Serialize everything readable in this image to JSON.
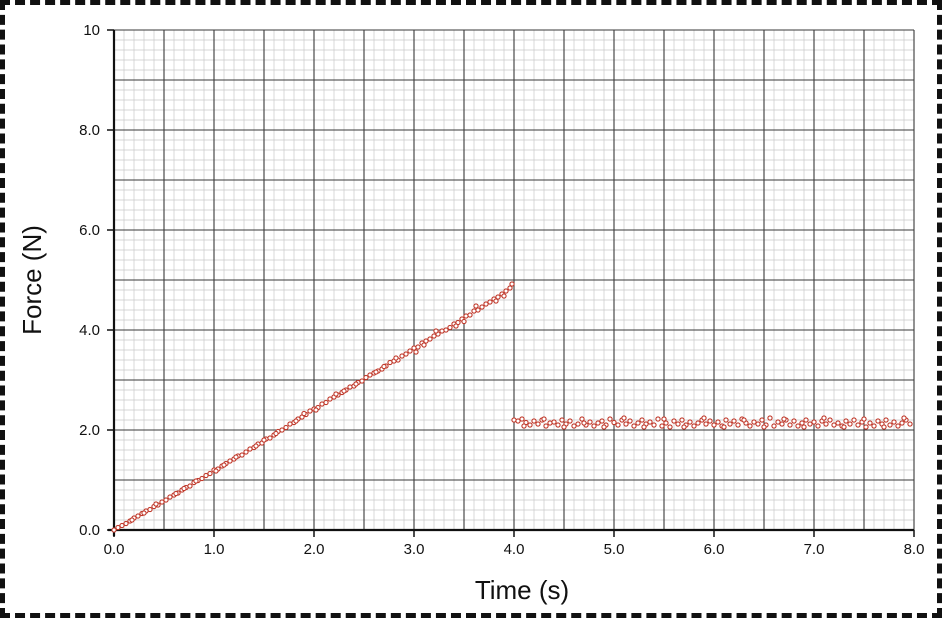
{
  "chart_data": {
    "type": "scatter",
    "title": "",
    "xlabel": "Time (s)",
    "ylabel": "Force (N)",
    "xlim": [
      0,
      8
    ],
    "ylim": [
      0,
      10
    ],
    "x_ticks": [
      "0.0",
      "1.0",
      "2.0",
      "3.0",
      "4.0",
      "5.0",
      "6.0",
      "7.0",
      "8.0"
    ],
    "y_ticks": [
      "0.0",
      "2.0",
      "4.0",
      "6.0",
      "8.0",
      "10"
    ],
    "grid": true,
    "colors": {
      "marker": "#c0392b",
      "major_grid": "#3a3a3a",
      "minor_grid": "#c8c8c8",
      "axis": "#111111"
    },
    "series": [
      {
        "segments": [
          {
            "description_time_range": [
              0.0,
              4.0
            ],
            "points": [
              [
                0.0,
                0.0
              ],
              [
                0.04,
                0.05
              ],
              [
                0.08,
                0.09
              ],
              [
                0.12,
                0.13
              ],
              [
                0.16,
                0.18
              ],
              [
                0.2,
                0.24
              ],
              [
                0.24,
                0.28
              ],
              [
                0.28,
                0.33
              ],
              [
                0.32,
                0.38
              ],
              [
                0.36,
                0.41
              ],
              [
                0.4,
                0.47
              ],
              [
                0.44,
                0.5
              ],
              [
                0.48,
                0.56
              ],
              [
                0.52,
                0.6
              ],
              [
                0.56,
                0.66
              ],
              [
                0.6,
                0.7
              ],
              [
                0.64,
                0.74
              ],
              [
                0.68,
                0.8
              ],
              [
                0.72,
                0.85
              ],
              [
                0.76,
                0.88
              ],
              [
                0.8,
                0.95
              ],
              [
                0.84,
                0.99
              ],
              [
                0.88,
                1.03
              ],
              [
                0.92,
                1.09
              ],
              [
                0.96,
                1.13
              ],
              [
                1.0,
                1.2
              ],
              [
                1.04,
                1.22
              ],
              [
                1.08,
                1.28
              ],
              [
                1.12,
                1.33
              ],
              [
                1.16,
                1.38
              ],
              [
                1.2,
                1.42
              ],
              [
                1.24,
                1.48
              ],
              [
                1.28,
                1.5
              ],
              [
                1.32,
                1.56
              ],
              [
                1.36,
                1.62
              ],
              [
                1.4,
                1.65
              ],
              [
                1.44,
                1.72
              ],
              [
                1.48,
                1.74
              ],
              [
                1.52,
                1.82
              ],
              [
                1.56,
                1.84
              ],
              [
                1.6,
                1.9
              ],
              [
                1.64,
                1.97
              ],
              [
                1.68,
                2.0
              ],
              [
                1.72,
                2.05
              ],
              [
                1.76,
                2.12
              ],
              [
                1.8,
                2.15
              ],
              [
                1.84,
                2.22
              ],
              [
                1.88,
                2.26
              ],
              [
                1.92,
                2.31
              ],
              [
                1.96,
                2.38
              ],
              [
                2.0,
                2.42
              ],
              [
                2.04,
                2.45
              ],
              [
                2.08,
                2.52
              ],
              [
                2.12,
                2.55
              ],
              [
                2.16,
                2.62
              ],
              [
                2.2,
                2.66
              ],
              [
                2.24,
                2.7
              ],
              [
                2.28,
                2.75
              ],
              [
                2.32,
                2.8
              ],
              [
                2.36,
                2.86
              ],
              [
                2.4,
                2.88
              ],
              [
                2.44,
                2.95
              ],
              [
                2.48,
                2.98
              ],
              [
                2.52,
                3.05
              ],
              [
                2.56,
                3.1
              ],
              [
                2.6,
                3.14
              ],
              [
                2.64,
                3.18
              ],
              [
                2.68,
                3.22
              ],
              [
                2.72,
                3.28
              ],
              [
                2.76,
                3.35
              ],
              [
                2.8,
                3.38
              ],
              [
                2.84,
                3.4
              ],
              [
                2.88,
                3.48
              ],
              [
                2.92,
                3.52
              ],
              [
                2.96,
                3.58
              ],
              [
                3.0,
                3.64
              ],
              [
                3.04,
                3.66
              ],
              [
                3.08,
                3.74
              ],
              [
                3.12,
                3.78
              ],
              [
                3.16,
                3.82
              ],
              [
                3.2,
                3.88
              ],
              [
                3.24,
                3.92
              ],
              [
                3.28,
                3.98
              ],
              [
                3.32,
                4.0
              ],
              [
                3.36,
                4.05
              ],
              [
                3.4,
                4.12
              ],
              [
                3.44,
                4.15
              ],
              [
                3.48,
                4.22
              ],
              [
                3.52,
                4.28
              ],
              [
                3.56,
                4.3
              ],
              [
                3.6,
                4.38
              ],
              [
                3.64,
                4.4
              ],
              [
                3.68,
                4.46
              ],
              [
                3.72,
                4.52
              ],
              [
                3.76,
                4.56
              ],
              [
                3.8,
                4.62
              ],
              [
                3.84,
                4.66
              ],
              [
                3.88,
                4.72
              ],
              [
                3.92,
                4.78
              ],
              [
                3.96,
                4.84
              ],
              [
                0.18,
                0.2
              ],
              [
                0.42,
                0.52
              ],
              [
                0.62,
                0.73
              ],
              [
                0.82,
                0.98
              ],
              [
                1.02,
                1.18
              ],
              [
                1.22,
                1.46
              ],
              [
                1.42,
                1.68
              ],
              [
                1.62,
                1.93
              ],
              [
                1.82,
                2.18
              ],
              [
                2.02,
                2.4
              ],
              [
                2.22,
                2.72
              ],
              [
                2.42,
                2.92
              ],
              [
                2.62,
                3.16
              ],
              [
                2.82,
                3.44
              ],
              [
                3.02,
                3.56
              ],
              [
                3.22,
                3.98
              ],
              [
                3.42,
                4.08
              ],
              [
                3.62,
                4.48
              ],
              [
                3.82,
                4.58
              ],
              [
                3.98,
                4.92
              ],
              [
                0.3,
                0.34
              ],
              [
                0.7,
                0.83
              ],
              [
                1.1,
                1.3
              ],
              [
                1.5,
                1.8
              ],
              [
                1.9,
                2.33
              ],
              [
                2.3,
                2.78
              ],
              [
                2.7,
                3.27
              ],
              [
                3.1,
                3.7
              ],
              [
                3.5,
                4.17
              ],
              [
                3.9,
                4.68
              ]
            ]
          },
          {
            "description_time_range": [
              4.0,
              8.0
            ],
            "points": [
              [
                4.0,
                2.2
              ],
              [
                4.04,
                2.18
              ],
              [
                4.08,
                2.22
              ],
              [
                4.12,
                2.15
              ],
              [
                4.16,
                2.1
              ],
              [
                4.2,
                2.18
              ],
              [
                4.24,
                2.12
              ],
              [
                4.28,
                2.2
              ],
              [
                4.32,
                2.08
              ],
              [
                4.36,
                2.14
              ],
              [
                4.4,
                2.16
              ],
              [
                4.44,
                2.1
              ],
              [
                4.48,
                2.2
              ],
              [
                4.52,
                2.12
              ],
              [
                4.56,
                2.18
              ],
              [
                4.6,
                2.08
              ],
              [
                4.64,
                2.12
              ],
              [
                4.68,
                2.22
              ],
              [
                4.72,
                2.1
              ],
              [
                4.76,
                2.16
              ],
              [
                4.8,
                2.08
              ],
              [
                4.84,
                2.14
              ],
              [
                4.88,
                2.18
              ],
              [
                4.92,
                2.1
              ],
              [
                4.96,
                2.22
              ],
              [
                5.0,
                2.15
              ],
              [
                5.04,
                2.1
              ],
              [
                5.08,
                2.2
              ],
              [
                5.12,
                2.12
              ],
              [
                5.16,
                2.18
              ],
              [
                5.2,
                2.08
              ],
              [
                5.24,
                2.14
              ],
              [
                5.28,
                2.2
              ],
              [
                5.32,
                2.12
              ],
              [
                5.36,
                2.16
              ],
              [
                5.4,
                2.1
              ],
              [
                5.44,
                2.22
              ],
              [
                5.48,
                2.08
              ],
              [
                5.52,
                2.14
              ],
              [
                5.56,
                2.06
              ],
              [
                5.6,
                2.18
              ],
              [
                5.64,
                2.12
              ],
              [
                5.68,
                2.2
              ],
              [
                5.72,
                2.1
              ],
              [
                5.76,
                2.16
              ],
              [
                5.8,
                2.08
              ],
              [
                5.84,
                2.14
              ],
              [
                5.88,
                2.2
              ],
              [
                5.92,
                2.12
              ],
              [
                5.96,
                2.18
              ],
              [
                6.0,
                2.1
              ],
              [
                6.04,
                2.16
              ],
              [
                6.08,
                2.08
              ],
              [
                6.12,
                2.2
              ],
              [
                6.16,
                2.12
              ],
              [
                6.2,
                2.18
              ],
              [
                6.24,
                2.1
              ],
              [
                6.28,
                2.22
              ],
              [
                6.32,
                2.14
              ],
              [
                6.36,
                2.08
              ],
              [
                6.4,
                2.16
              ],
              [
                6.44,
                2.12
              ],
              [
                6.48,
                2.2
              ],
              [
                6.52,
                2.1
              ],
              [
                6.56,
                2.24
              ],
              [
                6.6,
                2.08
              ],
              [
                6.64,
                2.16
              ],
              [
                6.68,
                2.12
              ],
              [
                6.72,
                2.2
              ],
              [
                6.76,
                2.1
              ],
              [
                6.8,
                2.18
              ],
              [
                6.84,
                2.08
              ],
              [
                6.88,
                2.14
              ],
              [
                6.92,
                2.2
              ],
              [
                6.96,
                2.12
              ],
              [
                7.0,
                2.16
              ],
              [
                7.04,
                2.08
              ],
              [
                7.08,
                2.18
              ],
              [
                7.12,
                2.12
              ],
              [
                7.16,
                2.2
              ],
              [
                7.2,
                2.1
              ],
              [
                7.24,
                2.14
              ],
              [
                7.28,
                2.08
              ],
              [
                7.32,
                2.18
              ],
              [
                7.36,
                2.12
              ],
              [
                7.4,
                2.2
              ],
              [
                7.44,
                2.1
              ],
              [
                7.48,
                2.16
              ],
              [
                7.52,
                2.06
              ],
              [
                7.56,
                2.14
              ],
              [
                7.6,
                2.08
              ],
              [
                7.64,
                2.18
              ],
              [
                7.68,
                2.12
              ],
              [
                7.72,
                2.2
              ],
              [
                7.76,
                2.1
              ],
              [
                7.8,
                2.16
              ],
              [
                7.84,
                2.08
              ],
              [
                7.88,
                2.14
              ],
              [
                7.92,
                2.2
              ],
              [
                7.96,
                2.12
              ],
              [
                4.1,
                2.08
              ],
              [
                4.3,
                2.22
              ],
              [
                4.5,
                2.06
              ],
              [
                4.7,
                2.14
              ],
              [
                4.9,
                2.06
              ],
              [
                5.1,
                2.24
              ],
              [
                5.3,
                2.06
              ],
              [
                5.5,
                2.22
              ],
              [
                5.7,
                2.06
              ],
              [
                5.9,
                2.24
              ],
              [
                6.1,
                2.06
              ],
              [
                6.3,
                2.2
              ],
              [
                6.5,
                2.06
              ],
              [
                6.7,
                2.22
              ],
              [
                6.9,
                2.06
              ],
              [
                7.1,
                2.24
              ],
              [
                7.3,
                2.06
              ],
              [
                7.5,
                2.22
              ],
              [
                7.7,
                2.06
              ],
              [
                7.9,
                2.24
              ]
            ]
          }
        ]
      }
    ]
  }
}
